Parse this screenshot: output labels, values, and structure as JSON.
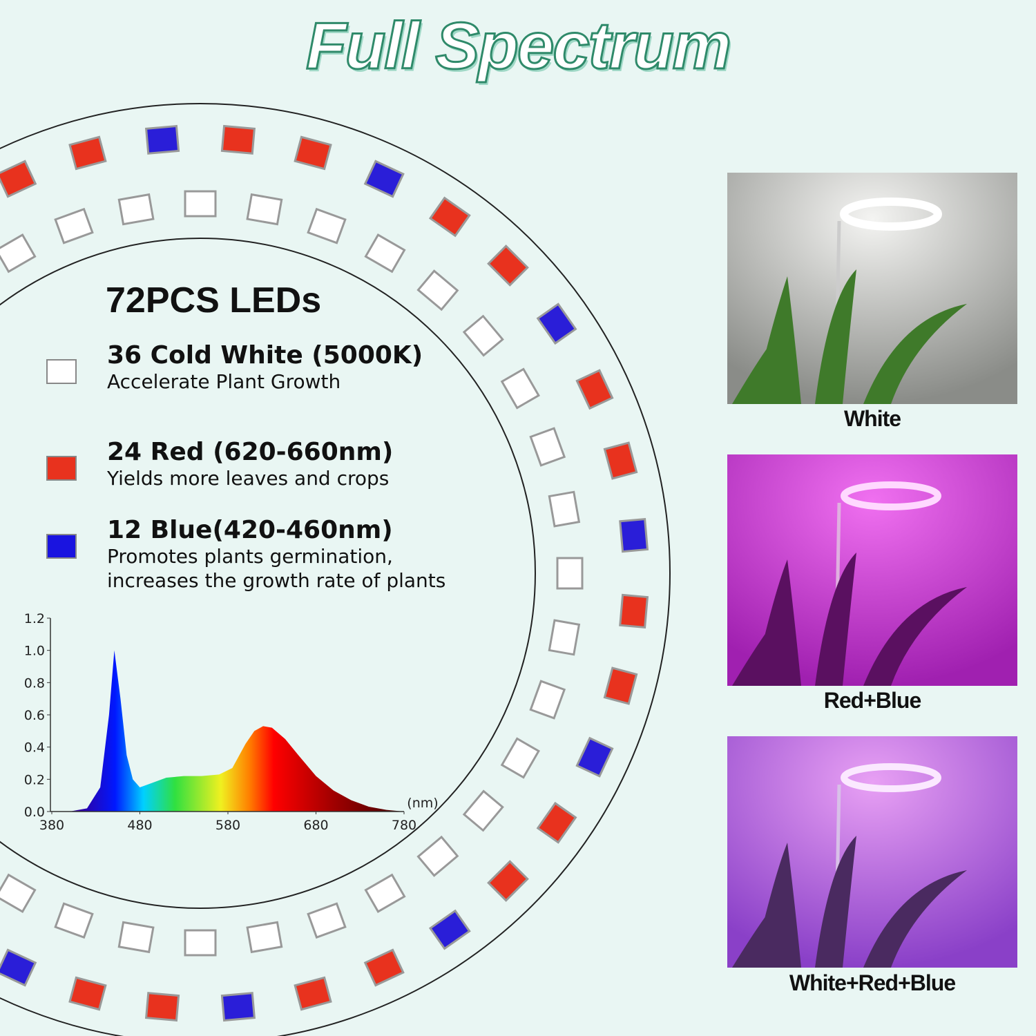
{
  "header": {
    "title": "Full Spectrum"
  },
  "leds": {
    "title": "72PCS LEDs",
    "items": [
      {
        "title": "36 Cold White (5000K)",
        "color": "#ffffff",
        "lines": [
          "Accelerate Plant Growth"
        ]
      },
      {
        "title": "24 Red (620-660nm)",
        "color": "#e8321e",
        "lines": [
          "Yields more leaves and crops"
        ]
      },
      {
        "title": "12 Blue(420-460nm)",
        "color": "#1a14e0",
        "lines": [
          "Promotes plants germination,",
          "increases the growth rate of plants"
        ]
      }
    ]
  },
  "chart_data": {
    "type": "area",
    "x_label": "(nm)",
    "x": [
      400,
      420,
      435,
      445,
      451,
      458,
      465,
      472,
      480,
      490,
      510,
      530,
      550,
      570,
      585,
      600,
      610,
      620,
      630,
      645,
      660,
      680,
      700,
      720,
      740,
      760,
      780
    ],
    "values": [
      0,
      0.02,
      0.15,
      0.6,
      1.0,
      0.7,
      0.35,
      0.2,
      0.15,
      0.17,
      0.21,
      0.22,
      0.22,
      0.23,
      0.27,
      0.42,
      0.5,
      0.53,
      0.52,
      0.45,
      0.35,
      0.22,
      0.13,
      0.07,
      0.03,
      0.01,
      0
    ],
    "xlim": [
      380,
      780
    ],
    "xticks": [
      380,
      480,
      580,
      680,
      780
    ],
    "ylim": [
      0,
      1.2
    ],
    "yticks": [
      {
        "value": 0,
        "label": "0.0"
      },
      {
        "value": 0.2,
        "label": "0.2"
      },
      {
        "value": 0.4,
        "label": "0.4"
      },
      {
        "value": 0.6,
        "label": "0.6"
      },
      {
        "value": 0.8,
        "label": "0.8"
      },
      {
        "value": 1,
        "label": "1.0"
      },
      {
        "value": 1.2,
        "label": "1.2"
      }
    ]
  },
  "photos": [
    {
      "caption": "White"
    },
    {
      "caption": "Red+Blue"
    },
    {
      "caption": "White+Red+Blue"
    }
  ]
}
